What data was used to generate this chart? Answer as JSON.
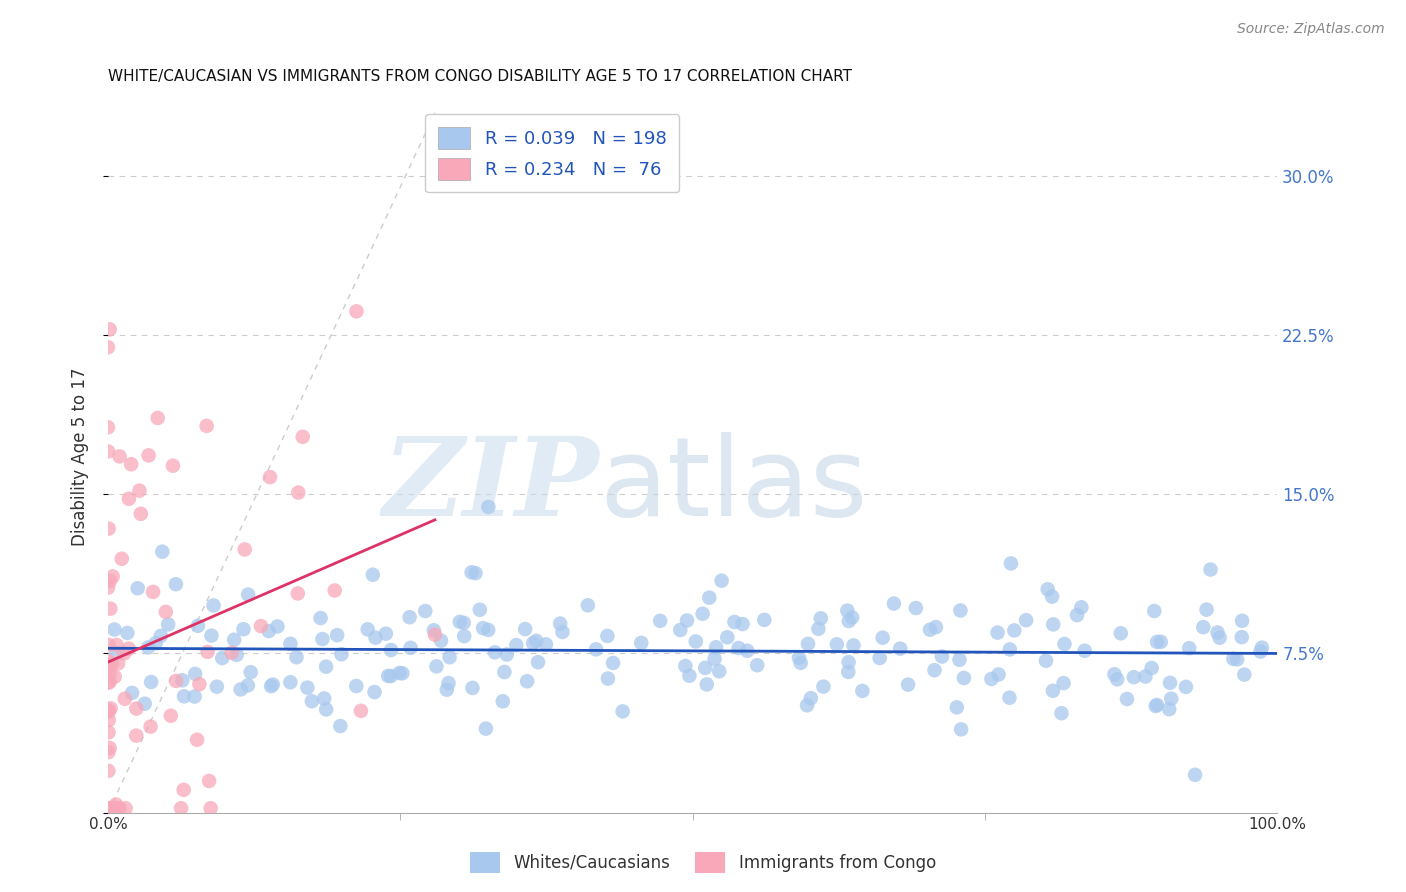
{
  "title": "WHITE/CAUCASIAN VS IMMIGRANTS FROM CONGO DISABILITY AGE 5 TO 17 CORRELATION CHART",
  "source": "Source: ZipAtlas.com",
  "ylabel": "Disability Age 5 to 17",
  "watermark_zip": "ZIP",
  "watermark_atlas": "atlas",
  "blue_R": 0.039,
  "blue_N": 198,
  "pink_R": 0.234,
  "pink_N": 76,
  "blue_color": "#A8C8EE",
  "pink_color": "#F8A8B8",
  "blue_line_color": "#2255BB",
  "pink_line_color": "#DD3366",
  "blue_label": "Whites/Caucasians",
  "pink_label": "Immigrants from Congo",
  "xlim": [
    0,
    1.0
  ],
  "ylim": [
    0,
    0.335
  ],
  "yticks": [
    0.0,
    0.075,
    0.15,
    0.225,
    0.3
  ],
  "ytick_labels": [
    "",
    "7.5%",
    "15.0%",
    "22.5%",
    "30.0%"
  ],
  "xticks": [
    0,
    1.0
  ],
  "xtick_labels": [
    "0.0%",
    "100.0%"
  ],
  "grid_color": "#CCCCCC",
  "background_color": "#FFFFFF",
  "title_fontsize": 11,
  "seed": 42
}
